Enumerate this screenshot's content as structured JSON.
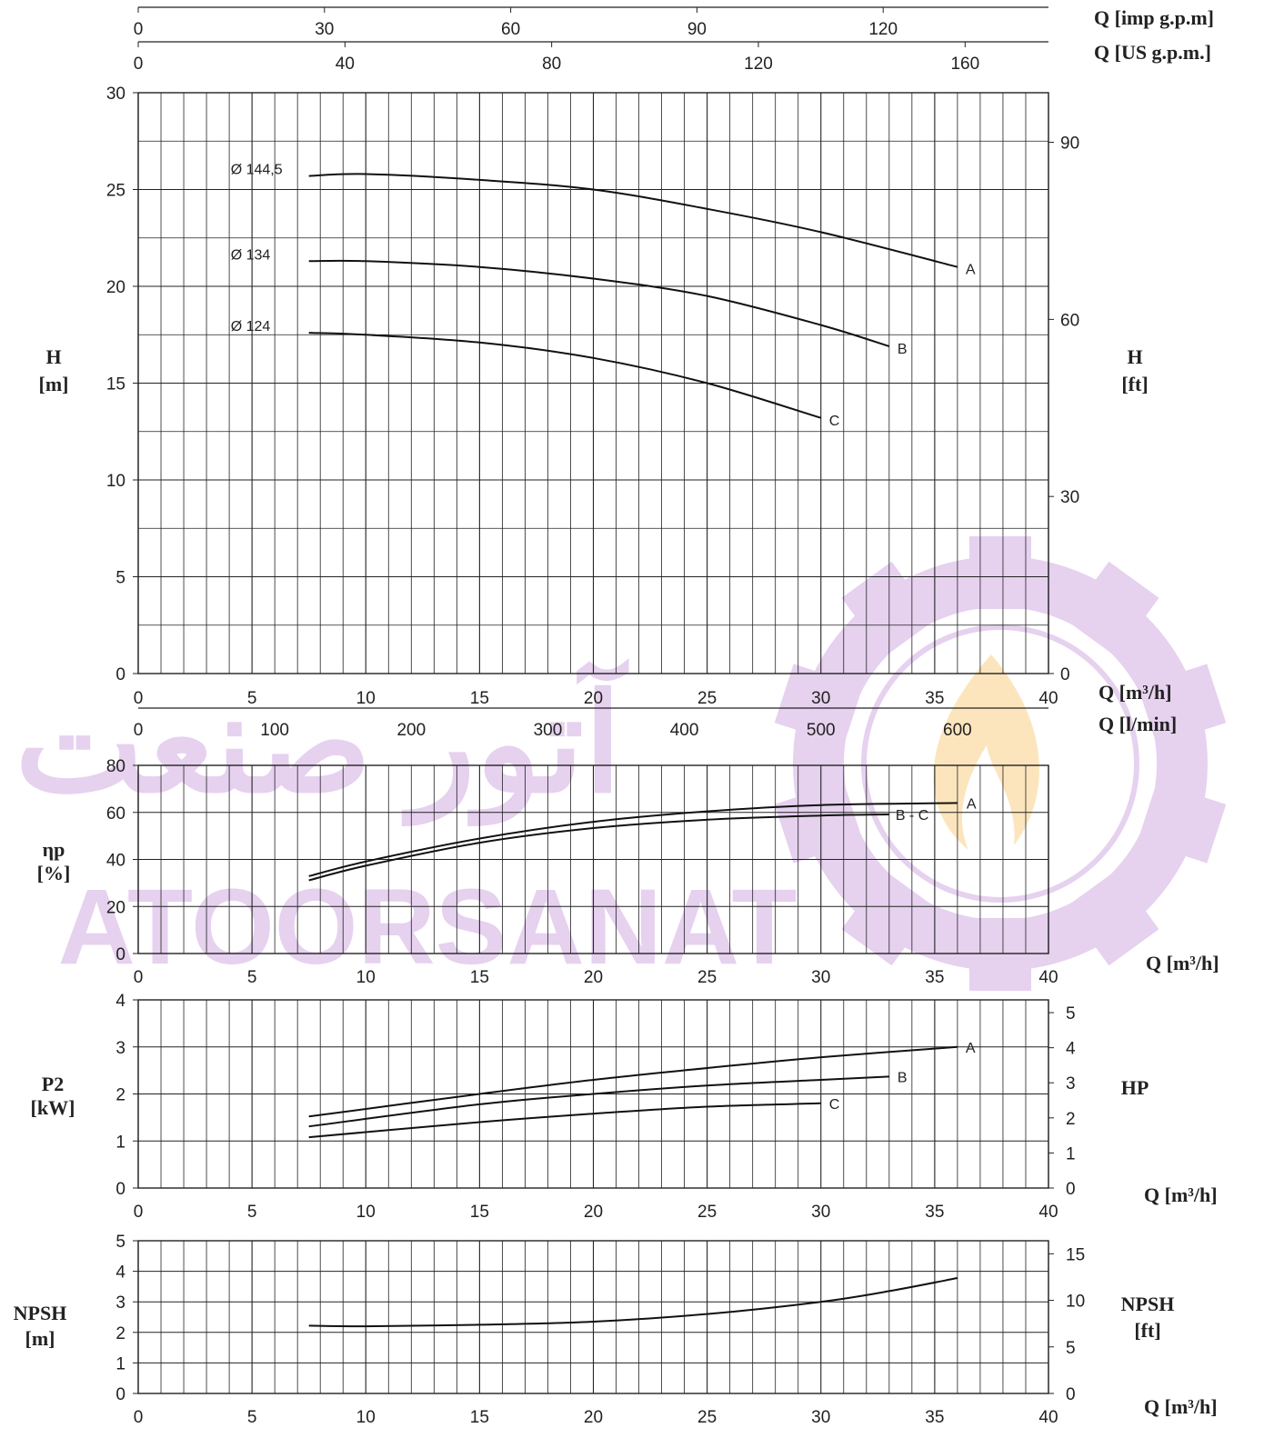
{
  "watermark": {
    "text_latin": "ATOORSANAT",
    "text_persian": "آتور صنعت",
    "color": "#b77dd1"
  },
  "chart_data": [
    {
      "id": "head",
      "type": "line",
      "ylabel": [
        "H",
        "[m]"
      ],
      "y2label": [
        "H",
        "[ft]"
      ],
      "xlim": [
        0,
        40
      ],
      "ylim": [
        0,
        30
      ],
      "x_ticks": [
        "0",
        "5",
        "10",
        "15",
        "20",
        "25",
        "30",
        "35",
        "40"
      ],
      "y_ticks": [
        "0",
        "5",
        "10",
        "15",
        "20",
        "25",
        "30"
      ],
      "y2_ticks": [
        "0",
        "30",
        "60",
        "90"
      ],
      "top_axes": [
        {
          "label": "Q [imp g.p.m]",
          "ticks": [
            "0",
            "30",
            "60",
            "90",
            "120"
          ]
        },
        {
          "label": "Q [US g.p.m.]",
          "ticks": [
            "0",
            "40",
            "80",
            "120",
            "160"
          ]
        }
      ],
      "bottom_axes": [
        {
          "label": "Q [m³/h]",
          "ticks": [
            "0",
            "5",
            "10",
            "15",
            "20",
            "25",
            "30",
            "35",
            "40"
          ]
        },
        {
          "label": "Q [l/min]",
          "ticks": [
            "0",
            "100",
            "200",
            "300",
            "400",
            "500",
            "600"
          ]
        }
      ],
      "series": [
        {
          "name": "A",
          "diameter": "Ø 144,5",
          "x": [
            7.5,
            10,
            15,
            20,
            25,
            30,
            36
          ],
          "y": [
            25.7,
            25.8,
            25.5,
            25.0,
            24.0,
            22.8,
            21.0
          ]
        },
        {
          "name": "B",
          "diameter": "Ø 134",
          "x": [
            7.5,
            10,
            15,
            20,
            25,
            30,
            33
          ],
          "y": [
            21.3,
            21.3,
            21.0,
            20.4,
            19.5,
            18.0,
            16.9
          ]
        },
        {
          "name": "C",
          "diameter": "Ø 124",
          "x": [
            7.5,
            10,
            15,
            20,
            25,
            30
          ],
          "y": [
            17.6,
            17.5,
            17.1,
            16.3,
            15.0,
            13.2
          ]
        }
      ]
    },
    {
      "id": "efficiency",
      "type": "line",
      "ylabel": [
        "ηp",
        "[%]"
      ],
      "xlabel": "Q [m³/h]",
      "xlim": [
        0,
        40
      ],
      "ylim": [
        0,
        90
      ],
      "x_ticks": [
        "0",
        "5",
        "10",
        "15",
        "20",
        "25",
        "30",
        "35",
        "40"
      ],
      "y_ticks": [
        "0",
        "20",
        "40",
        "60",
        "80"
      ],
      "series": [
        {
          "name": "A",
          "x": [
            7.5,
            10,
            15,
            20,
            25,
            30,
            36
          ],
          "y": [
            37,
            44,
            55,
            63,
            68,
            71,
            72
          ]
        },
        {
          "name": "B - C",
          "x": [
            7.5,
            10,
            15,
            20,
            25,
            30,
            33
          ],
          "y": [
            35,
            42,
            53,
            60,
            64,
            66,
            66.5
          ]
        }
      ]
    },
    {
      "id": "power",
      "type": "line",
      "ylabel": [
        "P2",
        "[kW]"
      ],
      "y2label": [
        "HP"
      ],
      "xlabel": "Q [m³/h]",
      "xlim": [
        0,
        40
      ],
      "ylim": [
        0,
        4
      ],
      "x_ticks": [
        "0",
        "5",
        "10",
        "15",
        "20",
        "25",
        "30",
        "35",
        "40"
      ],
      "y_ticks": [
        "0",
        "1",
        "2",
        "3",
        "4"
      ],
      "y2_ticks": [
        "0",
        "1",
        "2",
        "3",
        "4",
        "5"
      ],
      "series": [
        {
          "name": "A",
          "x": [
            7.5,
            15,
            20,
            25,
            30,
            36
          ],
          "y": [
            1.52,
            2.0,
            2.3,
            2.55,
            2.78,
            3.0
          ]
        },
        {
          "name": "B",
          "x": [
            7.5,
            15,
            20,
            25,
            30,
            33
          ],
          "y": [
            1.31,
            1.78,
            2.0,
            2.18,
            2.3,
            2.37
          ]
        },
        {
          "name": "C",
          "x": [
            7.5,
            15,
            20,
            25,
            30
          ],
          "y": [
            1.08,
            1.4,
            1.58,
            1.73,
            1.8
          ]
        }
      ]
    },
    {
      "id": "npsh",
      "type": "line",
      "ylabel": [
        "NPSH",
        "[m]"
      ],
      "y2label": [
        "NPSH",
        "[ft]"
      ],
      "xlabel": "Q [m³/h]",
      "xlim": [
        0,
        40
      ],
      "ylim": [
        0,
        5
      ],
      "x_ticks": [
        "0",
        "5",
        "10",
        "15",
        "20",
        "25",
        "30",
        "35",
        "40"
      ],
      "y_ticks": [
        "0",
        "1",
        "2",
        "3",
        "4",
        "5"
      ],
      "y2_ticks": [
        "0",
        "5",
        "10",
        "15"
      ],
      "series": [
        {
          "name": "",
          "x": [
            7.5,
            10,
            15,
            20,
            25,
            30,
            33,
            36
          ],
          "y": [
            2.22,
            2.2,
            2.25,
            2.35,
            2.6,
            3.0,
            3.35,
            3.78
          ]
        }
      ]
    }
  ]
}
